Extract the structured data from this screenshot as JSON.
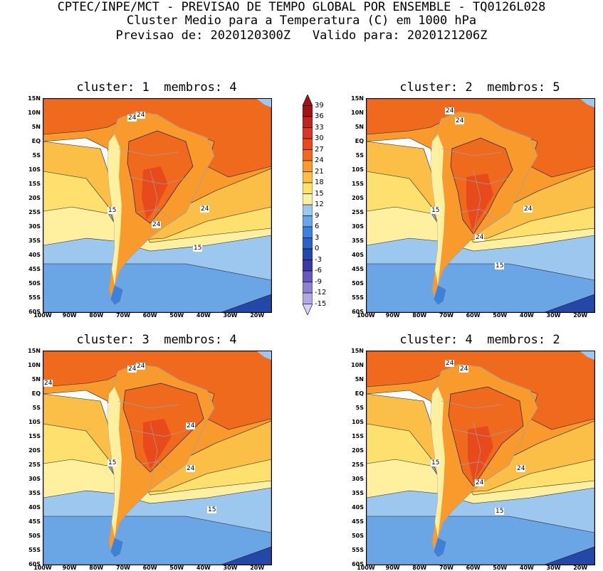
{
  "header": {
    "line1": "CPTEC/INPE/MCT - PREVISAO DE TEMPO GLOBAL POR ENSEMBLE - TQ0126L028",
    "line2": "Cluster Medio para a Temperatura (C) em 1000 hPa",
    "line3": "Previsao de: 2020120300Z   Valido para: 2020121206Z"
  },
  "panels": [
    {
      "title": "cluster: 1  membros: 4",
      "contour_labels": [
        "24",
        "24",
        "24",
        "24",
        "15",
        "15"
      ]
    },
    {
      "title": "cluster: 2  membros: 5",
      "contour_labels": [
        "24",
        "24",
        "24",
        "24",
        "15",
        "15"
      ]
    },
    {
      "title": "cluster: 3  membros: 4",
      "contour_labels": [
        "24",
        "24",
        "24",
        "24",
        "24",
        "15",
        "15"
      ]
    },
    {
      "title": "cluster: 4  membros: 2",
      "contour_labels": [
        "24",
        "24",
        "24",
        "24",
        "15",
        "15"
      ]
    }
  ],
  "lat_labels": [
    "15N",
    "10N",
    "5N",
    "EQ",
    "5S",
    "10S",
    "15S",
    "20S",
    "25S",
    "30S",
    "35S",
    "40S",
    "45S",
    "50S",
    "55S",
    "60S"
  ],
  "lon_labels": [
    "100W",
    "90W",
    "80W",
    "70W",
    "60W",
    "50W",
    "40W",
    "30W",
    "20W"
  ],
  "colorbar": {
    "labels": [
      "39",
      "36",
      "33",
      "30",
      "27",
      "24",
      "21",
      "18",
      "15",
      "12",
      "9",
      "6",
      "3",
      "0",
      "-3",
      "-6",
      "-9",
      "-12",
      "-15"
    ],
    "colors": [
      "#a01418",
      "#c02420",
      "#d83828",
      "#e84a1c",
      "#f06a1e",
      "#f89a2c",
      "#fbbe46",
      "#fde06e",
      "#fff0a0",
      "#9cc8f0",
      "#6aa6e6",
      "#3c82dc",
      "#2a62c8",
      "#2448a8",
      "#3a3aa0",
      "#6a58c0",
      "#9080d0",
      "#b0a8e0",
      "#d8d0f0"
    ]
  },
  "colors": {
    "ocean_warm": "#f06a1e",
    "land_hot": "#e84a1c",
    "border": "#a0a0a0"
  }
}
